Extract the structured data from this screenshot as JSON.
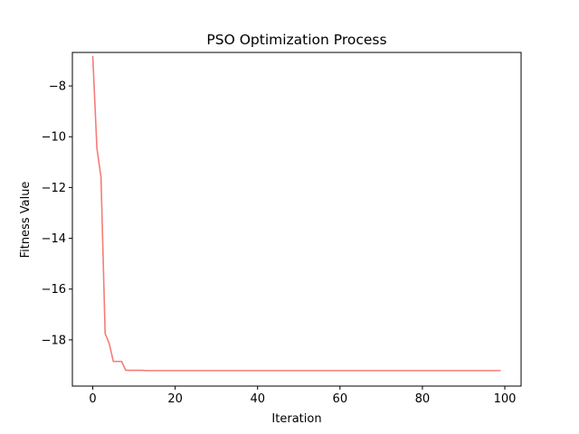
{
  "chart_data": {
    "type": "line",
    "title": "PSO Optimization Process",
    "xlabel": "Iteration",
    "ylabel": "Fitness Value",
    "xlim": [
      -4.95,
      103.95
    ],
    "ylim": [
      -19.82,
      -6.68
    ],
    "xticks": [
      0,
      20,
      40,
      60,
      80,
      100
    ],
    "yticks": [
      -8,
      -10,
      -12,
      -14,
      -16,
      -18
    ],
    "xtick_labels": [
      "0",
      "20",
      "40",
      "60",
      "80",
      "100"
    ],
    "ytick_labels": [
      "−8",
      "−10",
      "−12",
      "−14",
      "−16",
      "−18"
    ],
    "grid": false,
    "legend": "none",
    "series": [
      {
        "color": "#f47d78",
        "x": [
          0,
          1,
          2,
          3,
          4,
          5,
          6,
          7,
          8,
          9,
          10,
          11,
          12,
          13,
          14,
          15,
          20,
          30,
          40,
          50,
          60,
          70,
          80,
          90,
          99
        ],
        "y": [
          -6.82,
          -10.45,
          -11.6,
          -17.75,
          -18.15,
          -18.85,
          -18.85,
          -18.85,
          -19.2,
          -19.2,
          -19.2,
          -19.2,
          -19.2,
          -19.21,
          -19.21,
          -19.21,
          -19.21,
          -19.21,
          -19.21,
          -19.21,
          -19.21,
          -19.21,
          -19.21,
          -19.21,
          -19.21
        ]
      }
    ]
  }
}
